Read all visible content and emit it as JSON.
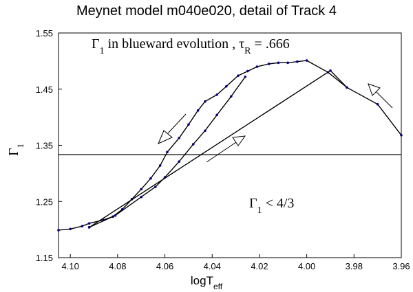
{
  "chart_data": {
    "type": "line",
    "title": "Meynet model m040e020, detail of Track 4",
    "x_label": [
      "logT",
      "eff"
    ],
    "y_label": [
      "Γ",
      "1"
    ],
    "annotations": [
      [
        "Γ",
        "1",
        " in blueward evolution ,  τ",
        "R",
        " = .666"
      ],
      [
        "Γ",
        "1",
        " < 4/3"
      ]
    ],
    "reference_line": 1.3333,
    "xlim": [
      4.105,
      3.96
    ],
    "ylim": [
      1.15,
      1.55
    ],
    "xticks": [
      {
        "value": 4.1,
        "label": "4.10"
      },
      {
        "value": 4.08,
        "label": "4.08"
      },
      {
        "value": 4.06,
        "label": "4.06"
      },
      {
        "value": 4.04,
        "label": "4.04"
      },
      {
        "value": 4.02,
        "label": "4.02"
      },
      {
        "value": 4.0,
        "label": "4.00"
      },
      {
        "value": 3.98,
        "label": "3.98"
      },
      {
        "value": 3.96,
        "label": "3.96"
      }
    ],
    "yticks": [
      1.55,
      1.45,
      1.35,
      1.25,
      1.15
    ],
    "series": [
      {
        "color": "#000000",
        "marker_color": "#000080",
        "x": [
          3.96,
          3.97,
          3.983,
          3.991,
          4.0,
          4.004,
          4.008,
          4.012,
          4.016,
          4.021,
          4.025,
          4.029,
          4.034,
          4.038,
          4.043,
          4.046,
          4.05,
          4.054,
          4.059,
          4.062,
          4.066,
          4.07,
          4.074,
          4.078,
          4.082,
          4.086,
          4.092,
          4.095,
          4.1,
          4.105
        ],
        "y": [
          1.368,
          1.423,
          1.453,
          1.48,
          1.501,
          1.499,
          1.497,
          1.497,
          1.495,
          1.49,
          1.482,
          1.474,
          1.455,
          1.44,
          1.428,
          1.412,
          1.387,
          1.363,
          1.338,
          1.314,
          1.291,
          1.272,
          1.254,
          1.236,
          1.223,
          1.217,
          1.211,
          1.206,
          1.201,
          1.199
        ]
      },
      {
        "color": "#000000",
        "marker_color": "#000080",
        "x": [
          4.092,
          4.081,
          4.07,
          4.064,
          4.06,
          4.054,
          4.048,
          4.043,
          4.038,
          4.032,
          4.026
        ],
        "y": [
          1.204,
          1.225,
          1.258,
          1.276,
          1.293,
          1.321,
          1.352,
          1.376,
          1.404,
          1.437,
          1.472
        ]
      },
      {
        "color": "#000000",
        "marker_color": "#000080",
        "x": [
          4.092,
          3.99,
          3.983
        ],
        "y": [
          1.204,
          1.483,
          1.453
        ]
      }
    ]
  }
}
